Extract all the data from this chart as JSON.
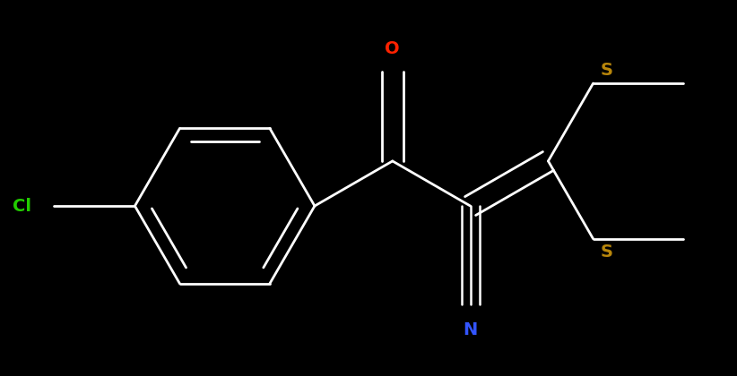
{
  "bg_color": "#000000",
  "atom_colors": {
    "Cl": "#22cc00",
    "O": "#ff2200",
    "S": "#b8860b",
    "N": "#3355ff"
  },
  "bond_color": "#ffffff",
  "bond_width": 2.0,
  "figsize": [
    8.22,
    4.2
  ],
  "dpi": 100
}
